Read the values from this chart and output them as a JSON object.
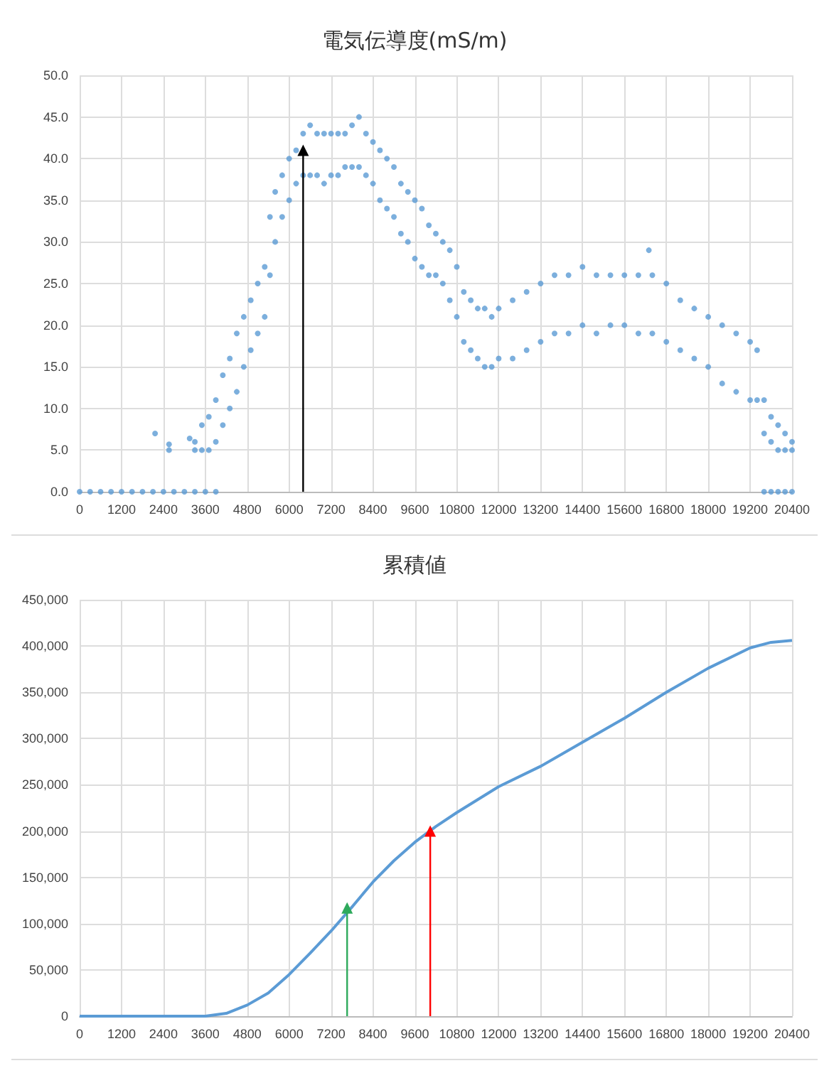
{
  "chart_data": [
    {
      "type": "scatter",
      "title": "電気伝導度(mS/m)",
      "marker": "circle",
      "grid": true,
      "xlim": [
        0,
        20400
      ],
      "xticks": [
        0,
        1200,
        2400,
        3600,
        4800,
        6000,
        7200,
        8400,
        9600,
        10800,
        12000,
        13200,
        14400,
        15600,
        16800,
        18000,
        19200,
        20400
      ],
      "ylim": [
        0,
        50
      ],
      "yticks": [
        {
          "value": 0,
          "label": "0.0"
        },
        {
          "value": 5,
          "label": "5.0"
        },
        {
          "value": 10,
          "label": "10.0"
        },
        {
          "value": 15,
          "label": "15.0"
        },
        {
          "value": 20,
          "label": "20.0"
        },
        {
          "value": 25,
          "label": "25.0"
        },
        {
          "value": 30,
          "label": "30.0"
        },
        {
          "value": 35,
          "label": "35.0"
        },
        {
          "value": 40,
          "label": "40.0"
        },
        {
          "value": 45,
          "label": "45.0"
        },
        {
          "value": 50,
          "label": "50.0"
        }
      ],
      "series": [
        {
          "type": "line",
          "color": "#000000",
          "marker": "triangle",
          "x": [
            6400,
            6400
          ],
          "values": [
            0,
            41
          ]
        },
        {
          "color": "#5b9bd5",
          "x": [
            0,
            300,
            600,
            900,
            1200,
            1500,
            1800,
            2100,
            2400,
            2700,
            3000,
            3300,
            3600,
            3900,
            2160,
            2560,
            2560,
            3150,
            3300,
            3300,
            3500,
            3500,
            3700,
            3700,
            3900,
            3900,
            4100,
            4100,
            4300,
            4300,
            4500,
            4500,
            4700,
            4700,
            4900,
            4900,
            5100,
            5100,
            5300,
            5300,
            5450,
            5450,
            5600,
            5600,
            5800,
            5800,
            6000,
            6000,
            6200,
            6200,
            6400,
            6400,
            6600,
            6600,
            6800,
            6800,
            7000,
            7000,
            7200,
            7200,
            7400,
            7400,
            7600,
            7600,
            7800,
            7800,
            8000,
            8000,
            8200,
            8200,
            8400,
            8400,
            8600,
            8600,
            8800,
            8800,
            9000,
            9000,
            9200,
            9200,
            9400,
            9400,
            9600,
            9600,
            9800,
            9800,
            10000,
            10000,
            10200,
            10200,
            10400,
            10400,
            10600,
            10600,
            10800,
            10800,
            11000,
            11000,
            11200,
            11200,
            11400,
            11400,
            11600,
            11600,
            11800,
            11800,
            12000,
            12000,
            12400,
            12400,
            12800,
            12800,
            13200,
            13200,
            13600,
            13600,
            14000,
            14000,
            14400,
            14400,
            14800,
            14800,
            15200,
            15200,
            15600,
            15600,
            16000,
            16000,
            16300,
            16400,
            16400,
            16800,
            16800,
            17200,
            17200,
            17600,
            17600,
            18000,
            18000,
            18400,
            18400,
            18800,
            18800,
            19200,
            19200,
            19400,
            19400,
            19600,
            19600,
            19800,
            19800,
            20000,
            20000,
            20200,
            20200,
            20400,
            20400,
            19600,
            19800,
            20000,
            20200,
            20400
          ],
          "values": [
            0,
            0,
            0,
            0,
            0,
            0,
            0,
            0,
            0,
            0,
            0,
            0,
            0,
            0,
            7,
            5.7,
            5,
            6.4,
            5,
            6,
            5,
            8,
            5,
            9,
            6,
            11,
            8,
            14,
            10,
            16,
            12,
            19,
            15,
            21,
            17,
            23,
            19,
            25,
            21,
            27,
            26,
            33,
            30,
            36,
            33,
            38,
            35,
            40,
            37,
            41,
            38,
            43,
            38,
            44,
            38,
            43,
            37,
            43,
            38,
            43,
            38,
            43,
            39,
            43,
            39,
            44,
            39,
            45,
            38,
            43,
            37,
            42,
            35,
            41,
            34,
            40,
            33,
            39,
            31,
            37,
            30,
            36,
            28,
            35,
            27,
            34,
            26,
            32,
            26,
            31,
            25,
            30,
            23,
            29,
            21,
            27,
            18,
            24,
            17,
            23,
            16,
            22,
            15,
            22,
            15,
            21,
            16,
            22,
            16,
            23,
            17,
            24,
            18,
            25,
            19,
            26,
            19,
            26,
            20,
            27,
            19,
            26,
            20,
            26,
            20,
            26,
            19,
            26,
            29,
            19,
            26,
            18,
            25,
            17,
            23,
            16,
            22,
            15,
            21,
            13,
            20,
            12,
            19,
            11,
            18,
            11,
            17,
            7,
            11,
            6,
            9,
            5,
            8,
            5,
            7,
            5,
            6,
            0,
            0,
            0,
            0,
            0
          ]
        }
      ]
    },
    {
      "type": "line",
      "title": "累積値",
      "marker": "none",
      "grid": true,
      "xlim": [
        0,
        20400
      ],
      "xticks": [
        0,
        1200,
        2400,
        3600,
        4800,
        6000,
        7200,
        8400,
        9600,
        10800,
        12000,
        13200,
        14400,
        15600,
        16800,
        18000,
        19200,
        20400
      ],
      "ylim": [
        0,
        450000
      ],
      "yticks": [
        0,
        {
          "value": 50000,
          "label": "50,000"
        },
        {
          "value": 100000,
          "label": "100,000"
        },
        {
          "value": 150000,
          "label": "150,000"
        },
        {
          "value": 200000,
          "label": "200,000"
        },
        {
          "value": 250000,
          "label": "250,000"
        },
        {
          "value": 300000,
          "label": "300,000"
        },
        {
          "value": 350000,
          "label": "350,000"
        },
        {
          "value": 400000,
          "label": "400,000"
        },
        {
          "value": 450000,
          "label": "450,000"
        }
      ],
      "series": [
        {
          "color": "#5b9bd5",
          "x": [
            0,
            3600,
            4200,
            4800,
            5400,
            6000,
            6600,
            7200,
            7800,
            8400,
            9000,
            9600,
            10200,
            10800,
            11400,
            12000,
            13200,
            14400,
            15600,
            16800,
            18000,
            19200,
            19800,
            20400
          ],
          "values": [
            0,
            0,
            3000,
            12000,
            25000,
            45000,
            68000,
            92000,
            118000,
            145000,
            168000,
            188000,
            205000,
            220000,
            234000,
            248000,
            270000,
            296000,
            322000,
            350000,
            376000,
            398000,
            404000,
            406000
          ]
        },
        {
          "color": "#2eaa5c",
          "marker": "triangle",
          "x": [
            7660,
            7660
          ],
          "values": [
            0,
            117000
          ]
        },
        {
          "color": "#ff0000",
          "marker": "triangle",
          "x": [
            10040,
            10040
          ],
          "values": [
            0,
            200000
          ]
        }
      ]
    }
  ]
}
